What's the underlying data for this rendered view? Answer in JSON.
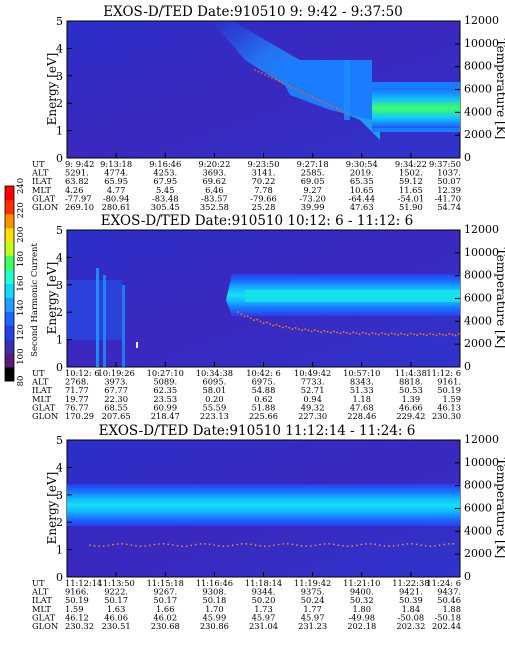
{
  "colorbar": {
    "label": "Second Harmonic Current",
    "ticks": [
      "80",
      "100",
      "120",
      "140",
      "160",
      "180",
      "200",
      "220",
      "240"
    ],
    "colors": [
      "#000000",
      "#5a1a7a",
      "#3a2fb0",
      "#2440e6",
      "#1e64ff",
      "#1fa0ff",
      "#12d8ff",
      "#20ffd0",
      "#40ff60",
      "#c0ff20",
      "#ffe000",
      "#ff9000",
      "#ff3000",
      "#ff0000"
    ]
  },
  "chart_data": [
    {
      "type": "heatmap",
      "title": "EXOS-D/TED   Date:910510  9: 9:42 - 9:37:50",
      "ylabel": "Energy [eV]",
      "y2label": "Temperature [K]",
      "ylim": [
        0,
        5
      ],
      "y2lim": [
        0,
        12000
      ],
      "yticks": [
        "0",
        "1",
        "2",
        "3",
        "4",
        "5"
      ],
      "y2ticks": [
        "0",
        "2000",
        "4000",
        "6000",
        "8000",
        "10000",
        "12000"
      ],
      "table": {
        "labels": [
          "UT",
          "ALT",
          "ILAT",
          "MLT",
          "GLAT",
          "GLON"
        ],
        "columns": [
          [
            "9: 9:42",
            "5291.",
            "63.82",
            "4.26",
            "-77.97",
            "269.10"
          ],
          [
            "9:13:18",
            "4774.",
            "65.95",
            "4.77",
            "-80.94",
            "280.61"
          ],
          [
            "9:16:46",
            "4253.",
            "67.95",
            "5.45",
            "-83.48",
            "305.45"
          ],
          [
            "9:20:22",
            "3693.",
            "69.62",
            "6.46",
            "-83.57",
            "352.58"
          ],
          [
            "9:23:50",
            "3141.",
            "70.22",
            "7.78",
            "-79.66",
            "25.28"
          ],
          [
            "9:27:18",
            "2585.",
            "69.05",
            "9.27",
            "-73.20",
            "39.99"
          ],
          [
            "9:30:54",
            "2019.",
            "65.35",
            "10.65",
            "-64.44",
            "47.63"
          ],
          [
            "9:34:22",
            "1502.",
            "59.12",
            "11.65",
            "-54.01",
            "51.90"
          ],
          [
            "9:37:50",
            "1037.",
            "50.07",
            "12.39",
            "-41.70",
            "54.74"
          ]
        ]
      }
    },
    {
      "type": "heatmap",
      "title": "EXOS-D/TED   Date:910510  10:12: 6 - 11:12: 6",
      "ylabel": "Energy [eV]",
      "y2label": "Temperature [K]",
      "ylim": [
        0,
        5
      ],
      "y2lim": [
        0,
        12000
      ],
      "yticks": [
        "0",
        "1",
        "2",
        "3",
        "4",
        "5"
      ],
      "y2ticks": [
        "0",
        "2000",
        "4000",
        "6000",
        "8000",
        "10000",
        "12000"
      ],
      "table": {
        "labels": [
          "UT",
          "ALT",
          "ILAT",
          "MLT",
          "GLAT",
          "GLON"
        ],
        "columns": [
          [
            "10:12: 6",
            "2768.",
            "71.77",
            "19.77",
            "76.77",
            "170.29"
          ],
          [
            "10:19:26",
            "3973.",
            "67.77",
            "22.30",
            "68.55",
            "207.65"
          ],
          [
            "10:27:10",
            "5089.",
            "62.35",
            "23.53",
            "60.99",
            "218.47"
          ],
          [
            "10:34:38",
            "6095.",
            "58.01",
            "0.20",
            "55.59",
            "223.13"
          ],
          [
            "10:42: 6",
            "6975.",
            "54.88",
            "0.62",
            "51.88",
            "225.66"
          ],
          [
            "10:49:42",
            "7733.",
            "52.71",
            "0.94",
            "49.32",
            "227.30"
          ],
          [
            "10:57:10",
            "8343.",
            "51.33",
            "1.18",
            "47.68",
            "228.46"
          ],
          [
            "11:4:38",
            "8818.",
            "50.53",
            "1.39",
            "46.66",
            "229.42"
          ],
          [
            "11:12: 6",
            "9161.",
            "50.19",
            "1.59",
            "46.13",
            "230.30"
          ]
        ]
      }
    },
    {
      "type": "heatmap",
      "title": "EXOS-D/TED   Date:910510  11:12:14 - 11:24: 6",
      "ylabel": "Energy [eV]",
      "y2label": "Temperature [K]",
      "ylim": [
        0,
        5
      ],
      "y2lim": [
        0,
        12000
      ],
      "yticks": [
        "0",
        "1",
        "2",
        "3",
        "4",
        "5"
      ],
      "y2ticks": [
        "0",
        "2000",
        "4000",
        "6000",
        "8000",
        "10000",
        "12000"
      ],
      "table": {
        "labels": [
          "UT",
          "ALT",
          "ILAT",
          "MLT",
          "GLAT",
          "GLON"
        ],
        "columns": [
          [
            "11:12:14",
            "9166.",
            "50.19",
            "1.59",
            "46.12",
            "230.32"
          ],
          [
            "11:13:50",
            "9222.",
            "50.17",
            "1.63",
            "46.06",
            "230.51"
          ],
          [
            "11:15:18",
            "9267.",
            "50.17",
            "1.66",
            "46.02",
            "230.68"
          ],
          [
            "11:16:46",
            "9308.",
            "50.18",
            "1.70",
            "45.99",
            "230.86"
          ],
          [
            "11:18:14",
            "9344.",
            "50.20",
            "1.73",
            "45.97",
            "231.04"
          ],
          [
            "11:19:42",
            "9375.",
            "50.24",
            "1.77",
            "45.97",
            "231.23"
          ],
          [
            "11:21:10",
            "9400.",
            "50.32",
            "1.80",
            "-49.98",
            "202.18"
          ],
          [
            "11:22:38",
            "9421.",
            "50.39",
            "1.84",
            "-50.08",
            "202.32"
          ],
          [
            "11:24: 6",
            "9437.",
            "50.46",
            "1.88",
            "-50.18",
            "202.44"
          ]
        ]
      }
    }
  ]
}
